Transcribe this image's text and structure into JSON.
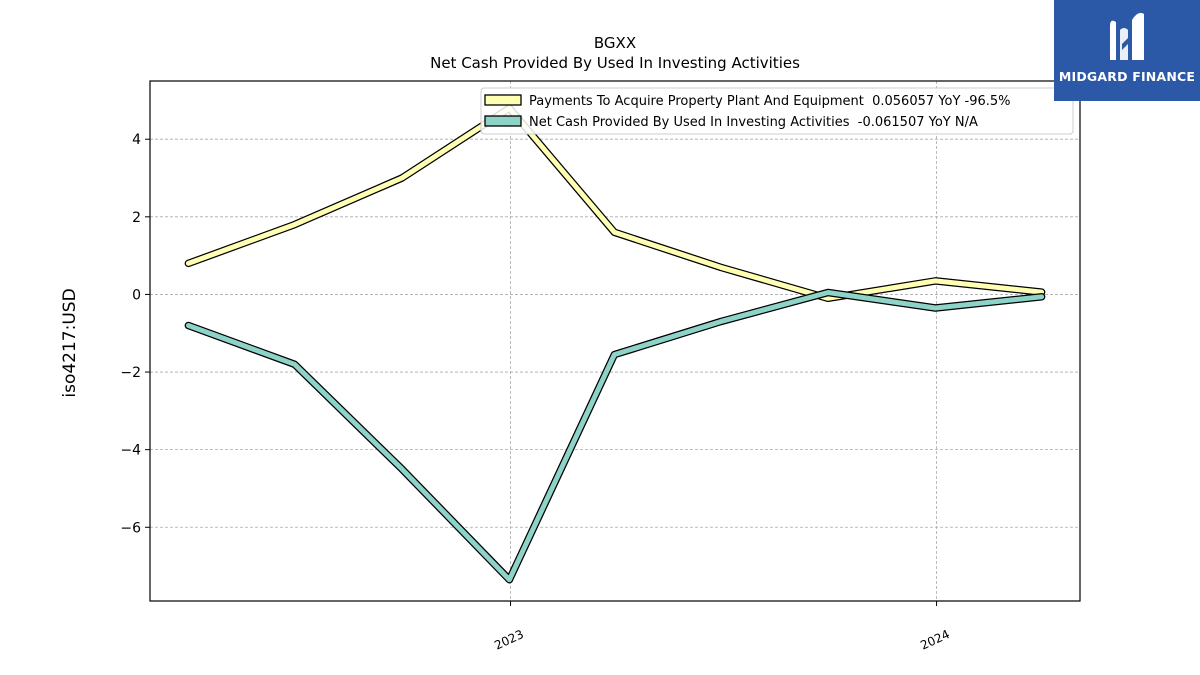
{
  "chart_data": {
    "type": "line",
    "title": "BGXX",
    "subtitle": "Net Cash Provided By Used In Investing Activities",
    "ylabel": "iso4217:USD",
    "xlabel": "",
    "x": [
      "2022-03-31",
      "2022-06-30",
      "2022-09-30",
      "2022-12-31",
      "2023-03-31",
      "2023-06-30",
      "2023-09-30",
      "2023-12-31",
      "2024-03-31"
    ],
    "xticks": [
      {
        "label": "2023",
        "date": "2023-01-01"
      },
      {
        "label": "2024",
        "date": "2024-01-01"
      }
    ],
    "yticks": [
      -6,
      -4,
      -2,
      0,
      2,
      4
    ],
    "ytick_labels": [
      "−6",
      "−4",
      "−2",
      "0",
      "2",
      "4"
    ],
    "ylim": [
      -7.9,
      5.5
    ],
    "grid": true,
    "legend_position": "top-right",
    "series": [
      {
        "name": "Payments To Acquire Property Plant And Equipment  0.056057 YoY -96.5%",
        "color": "#ffffb3",
        "values": [
          0.8,
          1.8,
          3.0,
          4.8,
          1.6,
          0.7,
          -0.1,
          0.35,
          0.06
        ]
      },
      {
        "name": "Net Cash Provided By Used In Investing Activities  -0.061507 YoY N/A",
        "color": "#8dd3c7",
        "values": [
          -0.8,
          -1.8,
          -4.5,
          -7.35,
          -1.55,
          -0.7,
          0.05,
          -0.35,
          -0.06
        ]
      }
    ]
  },
  "logo": {
    "text": "MIDGARD FINANCE",
    "color": "#2b59a8"
  }
}
